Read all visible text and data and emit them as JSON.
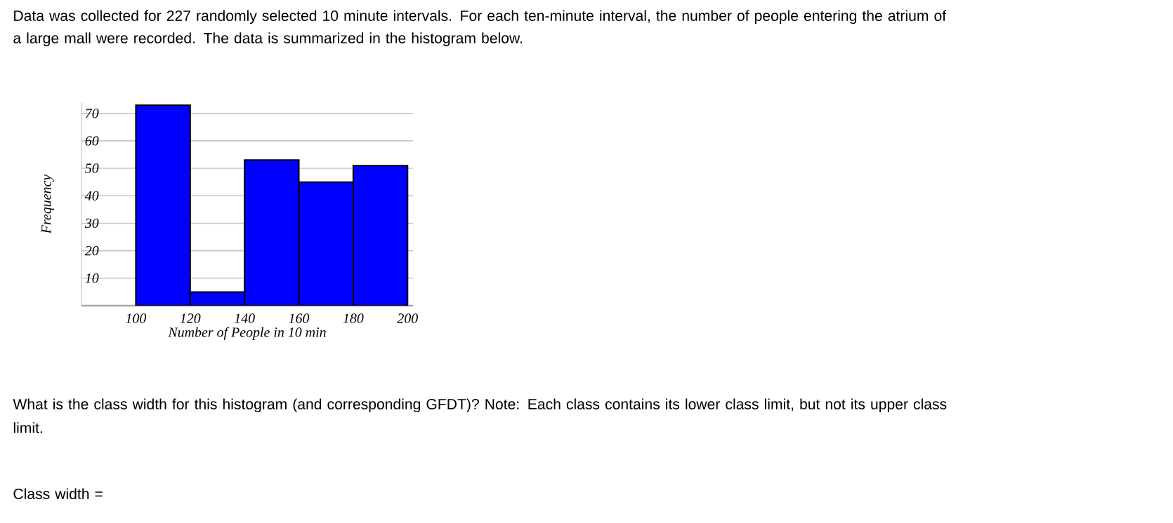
{
  "chart_data": {
    "type": "histogram",
    "title": "Data was collected for 227 randomly selected 10 minute intervals. For each ten-minute interval, the number of people entering the atrium of a large mall were recorded. The data is summarized in the histogram below.",
    "xlabel": "Number of People in 10 min",
    "ylabel": "Frequency",
    "bins": [
      100,
      120,
      140,
      160,
      180,
      200
    ],
    "values": [
      73,
      5,
      53,
      45,
      51
    ],
    "color": "#0000ff",
    "xlim": [
      80,
      202
    ],
    "ylim": [
      0,
      74
    ],
    "xticks": [
      100,
      120,
      140,
      160,
      180,
      200
    ],
    "yticks": [
      10,
      20,
      30,
      40,
      50,
      60,
      70
    ],
    "grid": "y",
    "annotations": [
      "What is the class width for this histogram (and corresponding GFDT)? Note: Each class contains its lower class limit, but not its upper class limit.",
      "Class width ="
    ]
  }
}
